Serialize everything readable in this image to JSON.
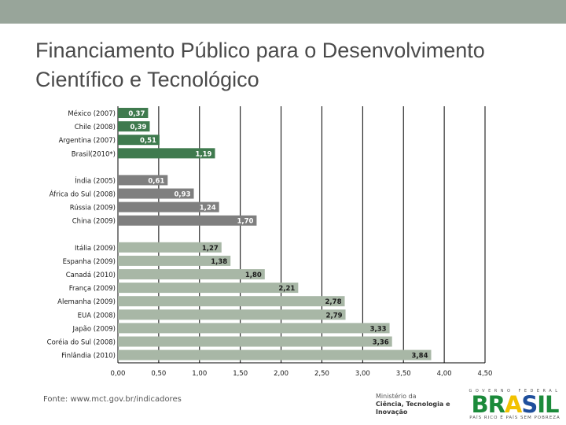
{
  "slide": {
    "title_line1": "Financiamento Público para o Desenvolvimento",
    "title_line2": "Científico e Tecnológico",
    "source": "Fonte: www.mct.gov.br/indicadores"
  },
  "colors": {
    "topbar": "#98a59a",
    "group1": "#3f7a4e",
    "group2": "#7f7f7f",
    "group3": "#a8b7a6",
    "grid": "#000000",
    "label_light": "#ffffff",
    "label_dark": "#1a1a1a"
  },
  "ministry": {
    "line1": "Ministério da",
    "line2": "Ciência, Tecnologia e",
    "line3": "Inovação"
  },
  "brand": {
    "government": "GOVERNO FEDERAL",
    "name": "BRASIL",
    "slogan": "PAÍS RICO É PAÍS SEM POBREZA"
  },
  "chart_data": {
    "type": "bar",
    "orientation": "horizontal",
    "title": "",
    "xlabel": "",
    "ylabel": "",
    "xlim": [
      0,
      4.5
    ],
    "x_ticks": [
      "0,00",
      "0,50",
      "1,00",
      "1,50",
      "2,00",
      "2,50",
      "3,00",
      "3,50",
      "4,00",
      "4,50"
    ],
    "grid": true,
    "groups": [
      {
        "color_key": "group1",
        "label_color_key": "label_light",
        "bars": [
          {
            "category": "México (2007)",
            "value": 0.37,
            "label": "0,37"
          },
          {
            "category": "Chile (2008)",
            "value": 0.39,
            "label": "0,39"
          },
          {
            "category": "Argentina (2007)",
            "value": 0.51,
            "label": "0,51"
          },
          {
            "category": "Brasil(2010*)",
            "value": 1.19,
            "label": "1,19"
          }
        ]
      },
      {
        "color_key": "group2",
        "label_color_key": "label_light",
        "bars": [
          {
            "category": "Índia (2005)",
            "value": 0.61,
            "label": "0,61"
          },
          {
            "category": "África do Sul (2008)",
            "value": 0.93,
            "label": "0,93"
          },
          {
            "category": "Rússia (2009)",
            "value": 1.24,
            "label": "1,24"
          },
          {
            "category": "China (2009)",
            "value": 1.7,
            "label": "1,70"
          }
        ]
      },
      {
        "color_key": "group3",
        "label_color_key": "label_dark",
        "bars": [
          {
            "category": "Itália (2009)",
            "value": 1.27,
            "label": "1,27"
          },
          {
            "category": "Espanha (2009)",
            "value": 1.38,
            "label": "1,38"
          },
          {
            "category": "Canadá (2010)",
            "value": 1.8,
            "label": "1,80"
          },
          {
            "category": "França (2009)",
            "value": 2.21,
            "label": "2,21"
          },
          {
            "category": "Alemanha (2009)",
            "value": 2.78,
            "label": "2,78"
          },
          {
            "category": "EUA (2008)",
            "value": 2.79,
            "label": "2,79"
          },
          {
            "category": "Japão (2009)",
            "value": 3.33,
            "label": "3,33"
          },
          {
            "category": "Coréia do Sul (2008)",
            "value": 3.36,
            "label": "3,36"
          },
          {
            "category": "Finlândia (2010)",
            "value": 3.84,
            "label": "3,84"
          }
        ]
      }
    ]
  }
}
